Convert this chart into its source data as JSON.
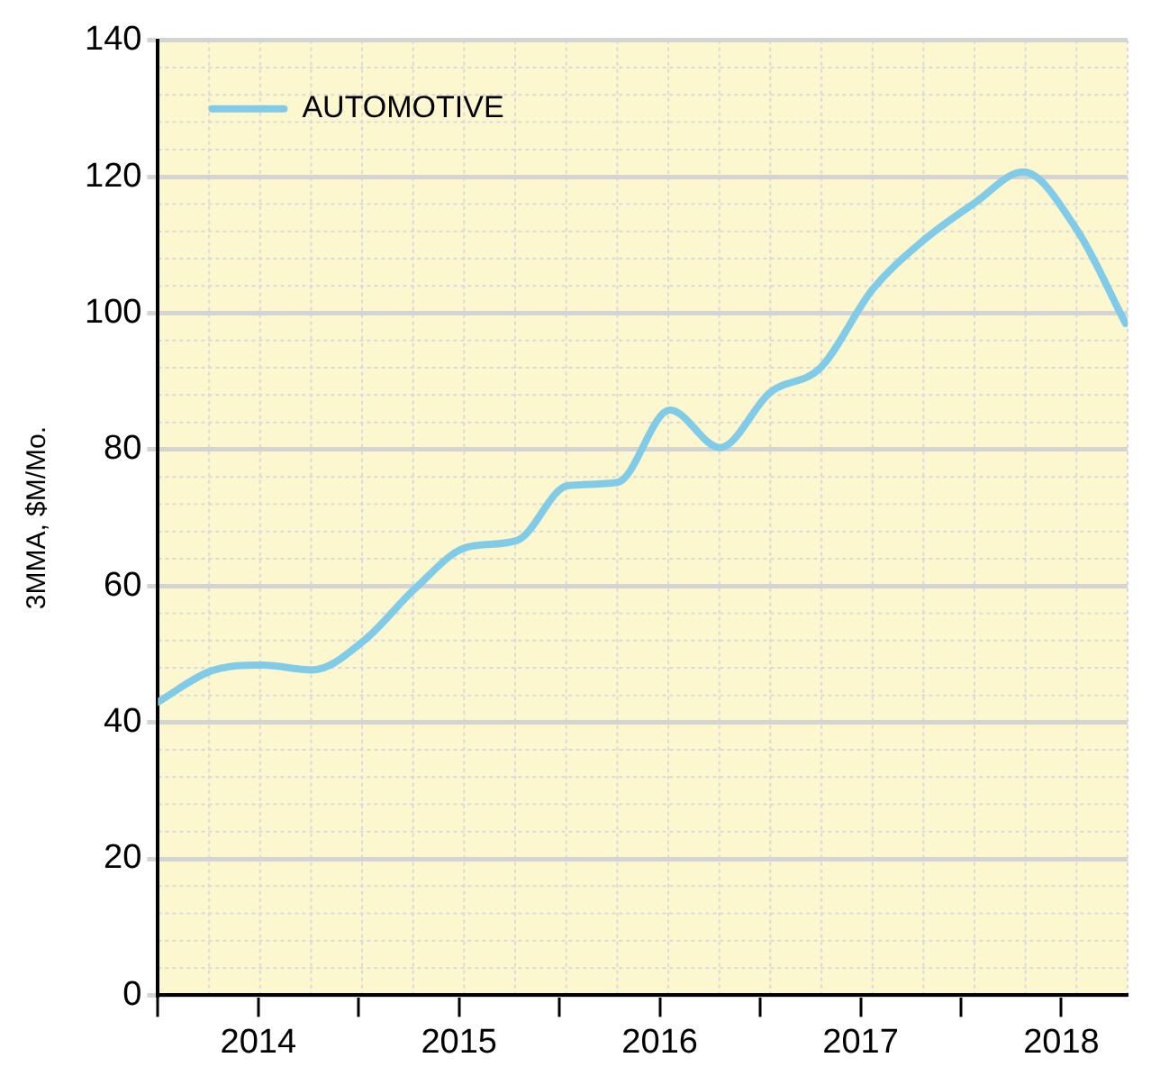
{
  "chart_data": {
    "type": "line",
    "ylabel": "3MMA, $M/Mo.",
    "x": [
      2014.0,
      2014.27,
      2014.52,
      2014.77,
      2015.03,
      2015.28,
      2015.54,
      2015.79,
      2016.04,
      2016.29,
      2016.55,
      2016.8,
      2017.05,
      2017.3,
      2017.56,
      2017.81,
      2018.07,
      2018.31,
      2018.58,
      2018.82
    ],
    "series": [
      {
        "name": "AUTOMOTIVE",
        "color": "#80cbe8",
        "values": [
          43,
          47.6,
          48.4,
          47.7,
          52.1,
          59.6,
          65.7,
          66.7,
          74.7,
          75.2,
          85.8,
          80.3,
          88.4,
          92,
          103.5,
          110.6,
          116.2,
          120.7,
          112.1,
          98.5
        ]
      }
    ],
    "xlim": [
      2014,
      2018.83
    ],
    "xticks": [
      {
        "value": 2014,
        "label": null
      },
      {
        "value": 2014.5,
        "label": "2014"
      },
      {
        "value": 2015,
        "label": null
      },
      {
        "value": 2015.5,
        "label": "2015"
      },
      {
        "value": 2016,
        "label": null
      },
      {
        "value": 2016.5,
        "label": "2016"
      },
      {
        "value": 2017,
        "label": null
      },
      {
        "value": 2017.5,
        "label": "2017"
      },
      {
        "value": 2018,
        "label": null
      },
      {
        "value": 2018.5,
        "label": "2018"
      }
    ],
    "ylim": [
      0,
      140
    ],
    "yticks": [
      0,
      20,
      40,
      60,
      80,
      100,
      120,
      140
    ],
    "grid": true,
    "legend": "top left",
    "marker": "none",
    "line_style": "solid"
  }
}
